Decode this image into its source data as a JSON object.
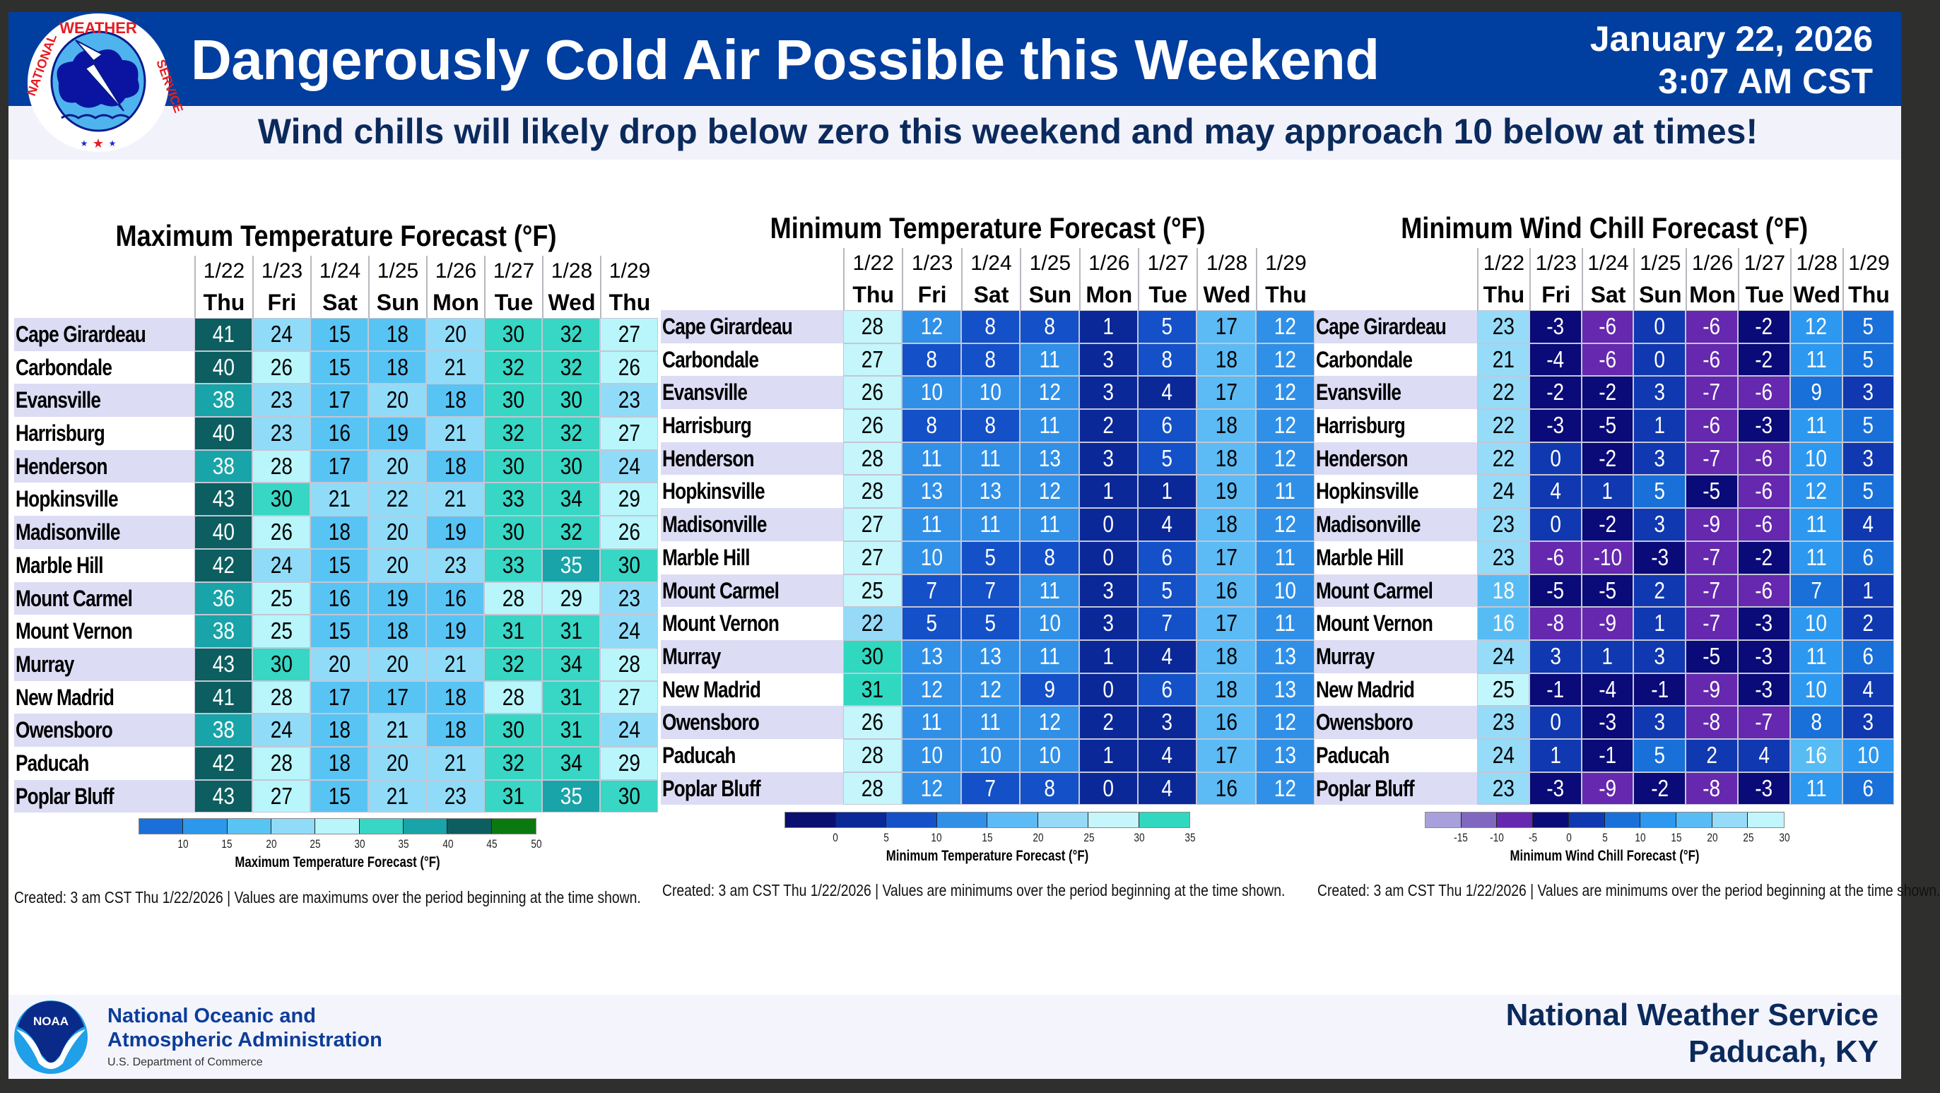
{
  "header": {
    "title": "Dangerously Cold Air Possible this Weekend",
    "date": "January 22, 2026",
    "time": "3:07 AM CST",
    "subtitle": "Wind chills will likely drop below zero this weekend and may approach 10 below at times!",
    "logo_text": "NATIONAL WEATHER SERVICE"
  },
  "columns": {
    "dates": [
      "1/22",
      "1/23",
      "1/24",
      "1/25",
      "1/26",
      "1/27",
      "1/28",
      "1/29"
    ],
    "days": [
      "Thu",
      "Fri",
      "Sat",
      "Sun",
      "Mon",
      "Tue",
      "Wed",
      "Thu"
    ]
  },
  "cities": [
    "Cape Girardeau",
    "Carbondale",
    "Evansville",
    "Harrisburg",
    "Henderson",
    "Hopkinsville",
    "Madisonville",
    "Marble Hill",
    "Mount Carmel",
    "Mount Vernon",
    "Murray",
    "New Madrid",
    "Owensboro",
    "Paducah",
    "Poplar Bluff"
  ],
  "panels": [
    {
      "id": "max",
      "title": "Maximum Temperature Forecast (°F)",
      "values": [
        [
          41,
          24,
          15,
          18,
          20,
          30,
          32,
          27
        ],
        [
          40,
          26,
          15,
          18,
          21,
          32,
          32,
          26
        ],
        [
          38,
          23,
          17,
          20,
          18,
          30,
          30,
          23
        ],
        [
          40,
          23,
          16,
          19,
          21,
          32,
          32,
          27
        ],
        [
          38,
          28,
          17,
          20,
          18,
          30,
          30,
          24
        ],
        [
          43,
          30,
          21,
          22,
          21,
          33,
          34,
          29
        ],
        [
          40,
          26,
          18,
          20,
          19,
          30,
          32,
          26
        ],
        [
          42,
          24,
          15,
          20,
          23,
          33,
          35,
          30
        ],
        [
          36,
          25,
          16,
          19,
          16,
          28,
          29,
          23
        ],
        [
          38,
          25,
          15,
          18,
          19,
          31,
          31,
          24
        ],
        [
          43,
          30,
          20,
          20,
          21,
          32,
          34,
          28
        ],
        [
          41,
          28,
          17,
          17,
          18,
          28,
          31,
          27
        ],
        [
          38,
          24,
          18,
          21,
          18,
          30,
          31,
          24
        ],
        [
          42,
          28,
          18,
          20,
          21,
          32,
          34,
          29
        ],
        [
          43,
          27,
          15,
          21,
          23,
          31,
          35,
          30
        ]
      ],
      "legend": {
        "ticks": [
          10,
          15,
          20,
          25,
          30,
          35,
          40,
          45,
          50
        ],
        "colors": [
          "#1a6fd8",
          "#2c98ec",
          "#58c4f4",
          "#90dcf8",
          "#b8f6fc",
          "#38d6c4",
          "#18a4a8",
          "#0c5e60",
          "#0a7a10"
        ],
        "label": "Maximum Temperature Forecast (°F)"
      },
      "note": "Created: 3 am CST Thu 1/22/2026  |  Values are maximums over the period beginning at the time shown."
    },
    {
      "id": "min",
      "title": "Minimum Temperature Forecast (°F)",
      "values": [
        [
          28,
          12,
          8,
          8,
          1,
          5,
          17,
          12
        ],
        [
          27,
          8,
          8,
          11,
          3,
          8,
          18,
          12
        ],
        [
          26,
          10,
          10,
          12,
          3,
          4,
          17,
          12
        ],
        [
          26,
          8,
          8,
          11,
          2,
          6,
          18,
          12
        ],
        [
          28,
          11,
          11,
          13,
          3,
          5,
          18,
          12
        ],
        [
          28,
          13,
          13,
          12,
          1,
          1,
          19,
          11
        ],
        [
          27,
          11,
          11,
          11,
          0,
          4,
          18,
          12
        ],
        [
          27,
          10,
          5,
          8,
          0,
          6,
          17,
          11
        ],
        [
          25,
          7,
          7,
          11,
          3,
          5,
          16,
          10
        ],
        [
          22,
          5,
          5,
          10,
          3,
          7,
          17,
          11
        ],
        [
          30,
          13,
          13,
          11,
          1,
          4,
          18,
          13
        ],
        [
          31,
          12,
          12,
          9,
          0,
          6,
          18,
          13
        ],
        [
          26,
          11,
          11,
          12,
          2,
          3,
          16,
          12
        ],
        [
          28,
          10,
          10,
          10,
          1,
          4,
          17,
          13
        ],
        [
          28,
          12,
          7,
          8,
          0,
          4,
          16,
          12
        ]
      ],
      "legend": {
        "ticks": [
          0,
          5,
          10,
          15,
          20,
          25,
          30,
          35
        ],
        "colors": [
          "#0a1070",
          "#0a2898",
          "#1450c8",
          "#3090e8",
          "#5cbaf4",
          "#96daf8",
          "#c4f6fc",
          "#30d8c0"
        ],
        "label": "Minimum Temperature Forecast (°F)"
      },
      "note": "Created: 3 am CST Thu 1/22/2026  |  Values are minimums over the period beginning at the time shown."
    },
    {
      "id": "wc",
      "title": "Minimum Wind Chill Forecast (°F)",
      "values": [
        [
          23,
          -3,
          -6,
          0,
          -6,
          -2,
          12,
          5
        ],
        [
          21,
          -4,
          -6,
          0,
          -6,
          -2,
          11,
          5
        ],
        [
          22,
          -2,
          -2,
          3,
          -7,
          -6,
          9,
          3
        ],
        [
          22,
          -3,
          -5,
          1,
          -6,
          -3,
          11,
          5
        ],
        [
          22,
          0,
          -2,
          3,
          -7,
          -6,
          10,
          3
        ],
        [
          24,
          4,
          1,
          5,
          -5,
          -6,
          12,
          5
        ],
        [
          23,
          0,
          -2,
          3,
          -9,
          -6,
          11,
          4
        ],
        [
          23,
          -6,
          -10,
          -3,
          -7,
          -2,
          11,
          6
        ],
        [
          18,
          -5,
          -5,
          2,
          -7,
          -6,
          7,
          1
        ],
        [
          16,
          -8,
          -9,
          1,
          -7,
          -3,
          10,
          2
        ],
        [
          24,
          3,
          1,
          3,
          -5,
          -3,
          11,
          6
        ],
        [
          25,
          -1,
          -4,
          -1,
          -9,
          -3,
          10,
          4
        ],
        [
          23,
          0,
          -3,
          3,
          -8,
          -7,
          8,
          3
        ],
        [
          24,
          1,
          -1,
          5,
          2,
          4,
          16,
          10
        ],
        [
          23,
          -3,
          -9,
          -2,
          -8,
          -3,
          11,
          6
        ]
      ],
      "legend": {
        "ticks": [
          -15,
          -10,
          -5,
          0,
          5,
          10,
          15,
          20,
          25,
          30
        ],
        "colors": [
          "#a8a0dc",
          "#8068c0",
          "#6528ae",
          "#0a0a78",
          "#1038b0",
          "#1870d8",
          "#2c98f0",
          "#58bcf4",
          "#96dcf8",
          "#c0f6fc"
        ],
        "label": "Minimum Wind Chill Forecast (°F)"
      },
      "note": "Created: 3 am CST Thu 1/22/2026  |  Values are minimums over the period beginning at the time shown."
    }
  ],
  "footer": {
    "noaa_line1": "National Oceanic and",
    "noaa_line2": "Atmospheric Administration",
    "noaa_dept": "U.S. Department of Commerce",
    "noaa_logo_text": "NOAA",
    "office_line1": "National Weather Service",
    "office_line2": "Paducah, KY"
  }
}
